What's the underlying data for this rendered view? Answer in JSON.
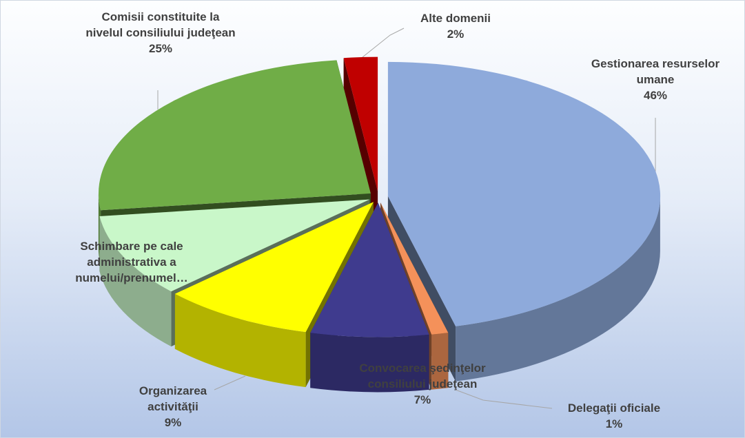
{
  "chart_data": {
    "type": "pie3d",
    "categories": [
      "Gestionarea resurselor umane",
      "Delegaţii oficiale",
      "Convocarea şedinţelor consiliului judeţean",
      "Organizarea activităţii",
      "Schimbare pe cale administrativa a numelui/prenumel…",
      "Comisii constituite la nivelul consiliului judeţean",
      "Alte domenii"
    ],
    "values": [
      46,
      1,
      7,
      9,
      10,
      25,
      2
    ],
    "value_labels": [
      "46%",
      "1%",
      "7%",
      "9%",
      null,
      "25%",
      "2%"
    ],
    "colors": [
      "#8eaadb",
      "#f4915a",
      "#3f3b8e",
      "#ffff00",
      "#c9f7c9",
      "#70ad47",
      "#c00000"
    ]
  }
}
